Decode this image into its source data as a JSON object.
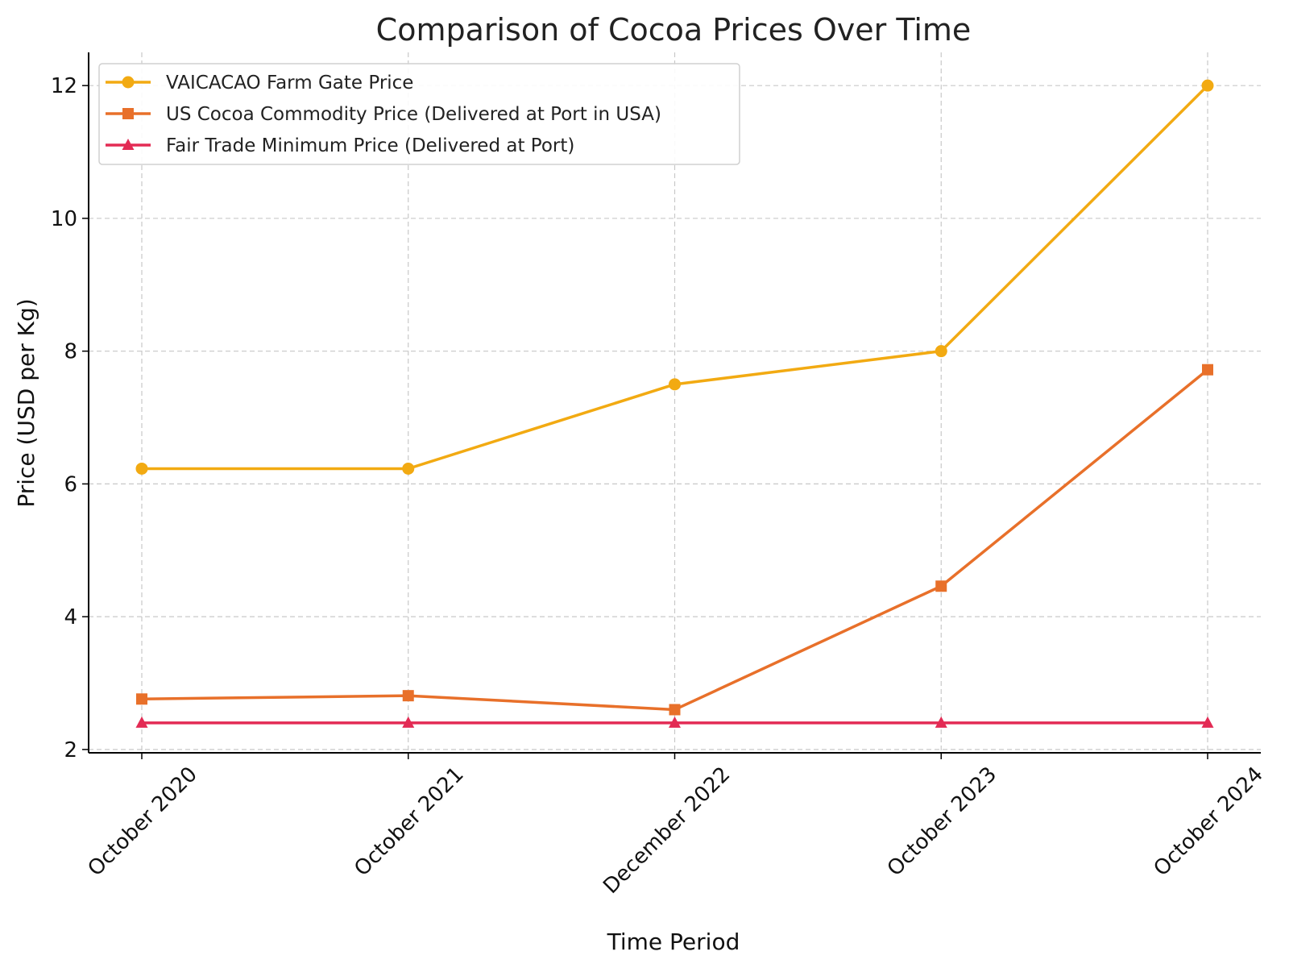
{
  "chart_data": {
    "type": "line",
    "title": "Comparison of Cocoa Prices Over Time",
    "xlabel": "Time Period",
    "ylabel": "Price (USD per Kg)",
    "categories": [
      "October 2020",
      "October 2021",
      "December 2022",
      "October 2023",
      "October 2024"
    ],
    "ylim": [
      1.95,
      12.5
    ],
    "yticks": [
      2,
      4,
      6,
      8,
      10,
      12
    ],
    "grid": true,
    "legend_position": "top-left",
    "series": [
      {
        "name": "VAICACAO Farm Gate Price",
        "values": [
          6.23,
          6.23,
          7.5,
          8.0,
          12.0
        ],
        "color": "#f2aa12",
        "marker": "circle"
      },
      {
        "name": "US Cocoa Commodity Price (Delivered at Port in USA)",
        "values": [
          2.76,
          2.81,
          2.6,
          4.46,
          7.72
        ],
        "color": "#e8702a",
        "marker": "square"
      },
      {
        "name": "Fair Trade Minimum Price (Delivered at Port)",
        "values": [
          2.4,
          2.4,
          2.4,
          2.4,
          2.4
        ],
        "color": "#e32b54",
        "marker": "triangle"
      }
    ]
  }
}
